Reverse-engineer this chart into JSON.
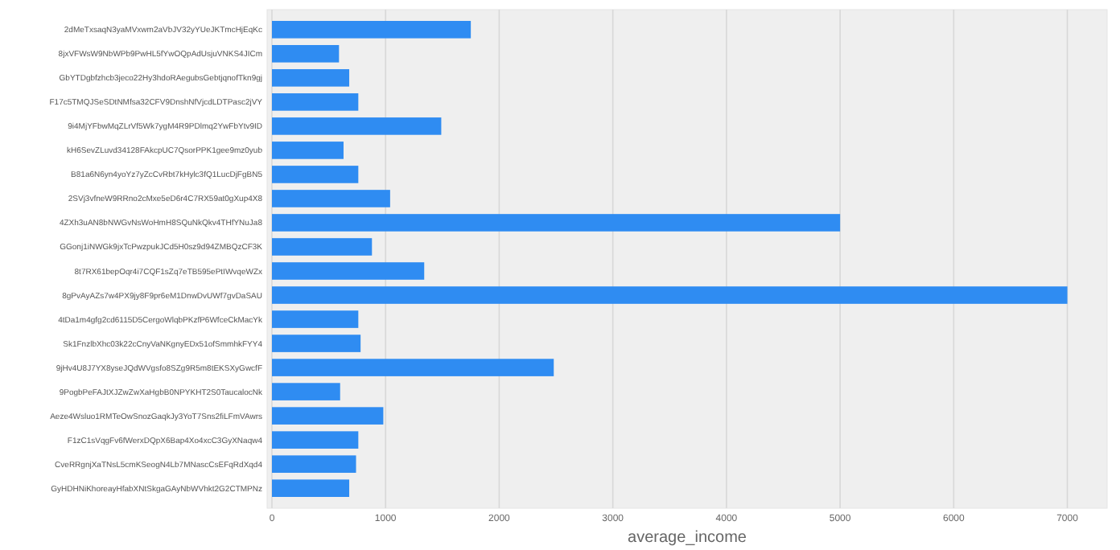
{
  "chart_data": {
    "type": "bar",
    "orientation": "horizontal",
    "xlabel": "average_income",
    "categories": [
      "2dMeTxsaqN3yaMVxwm2aVbJV32yYUeJKTmcHjEqKc",
      "8jxVFWsW9NbWPb9PwHL5fYwOQpAdUsjuVNKS4JICm",
      "GbYTDgbfzhcb3jeco22Hy3hdoRAegubsGebtjqnofTkn9gj",
      "F17c5TMQJSeSDtNMfsa32CFV9DnshNfVjcdLDTPasc2jVY",
      "9i4MjYFbwMqZLrVf5Wk7ygM4R9PDlmq2YwFbYtv9ID",
      "kH6SevZLuvd34128FAkcpUC7QsorPPK1gee9mz0yub",
      "B81a6N6yn4yoYz7yZcCvRbt7kHylc3fQ1LucDjFgBN5",
      "2SVj3vfneW9RRno2cMxe5eD6r4C7RX59at0gXup4X8",
      "4ZXh3uAN8bNWGvNsWoHmH8SQuNkQkv4THfYNuJa8",
      "GGonj1iNWGk9jxTcPwzpukJCd5H0sz9d94ZMBQzCF3K",
      "8t7RX61bepOqr4i7CQF1sZq7eTB595ePtIWvqeWZx",
      "8gPvAyAZs7w4PX9jy8F9pr6eM1DnwDvUWf7gvDaSAU",
      "4tDa1m4gfg2cd6115D5CergoWlqbPKzfP6WfceCkMacYk",
      "Sk1FnzlbXhc03k22cCnyVaNKgnyEDx51ofSmmhkFYY4",
      "9jHv4U8J7YX8yseJQdWVgsfo8SZg9R5m8tEKSXyGwcfF",
      "9PogbPeFAJtXJZwZwXaHgbB0NPYKHT2S0TaucalocNk",
      "Aeze4Wsluo1RMTeOwSnozGaqkJy3YoT7Sns2fiLFmVAwrs",
      "F1zC1sVqgFv6fWerxDQpX6Bap4Xo4xcC3GyXNaqw4",
      "CveRRgnjXaTNsL5cmKSeogN4Lb7MNascCsEFqRdXqd4",
      "GyHDHNiKhoreayHfabXNtSkgaGAyNbWVhkt2G2CTMPNz"
    ],
    "values": [
      1750,
      590,
      680,
      760,
      1490,
      630,
      760,
      1040,
      5000,
      880,
      1340,
      7000,
      760,
      780,
      2480,
      600,
      980,
      760,
      740,
      680
    ],
    "color": "#2f8cf2",
    "xlim": [
      0,
      7350
    ],
    "xticks": [
      0,
      1000,
      2000,
      3000,
      4000,
      5000,
      6000,
      7000
    ],
    "grid": "x"
  }
}
